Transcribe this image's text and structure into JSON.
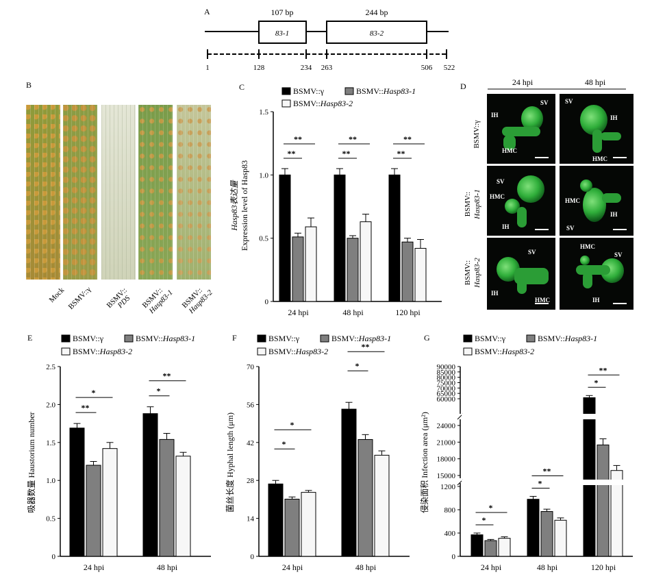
{
  "panel_labels": {
    "A": "A",
    "B": "B",
    "C": "C",
    "D": "D",
    "E": "E",
    "F": "F",
    "G": "G"
  },
  "gene_map": {
    "fragments": [
      {
        "name": "83-1",
        "size": "107 bp"
      },
      {
        "name": "83-2",
        "size": "244 bp"
      }
    ],
    "positions": [
      "1",
      "128",
      "234",
      "263",
      "506",
      "522"
    ]
  },
  "leaf_labels": [
    {
      "line1": "Mock",
      "line2": ""
    },
    {
      "line1": "BSMV::γ",
      "line2": ""
    },
    {
      "line1": "BSMV::",
      "line2": "PDS"
    },
    {
      "line1": "BSMV::",
      "line2": "Hasp83-1"
    },
    {
      "line1": "BSMV::",
      "line2": "Hasp83-2"
    }
  ],
  "micro": {
    "cols": [
      "24 hpi",
      "48 hpi"
    ],
    "rows": [
      {
        "line1": "BSMV::γ",
        "line2": ""
      },
      {
        "line1": "BSMV::",
        "line2": "Hasp83-1"
      },
      {
        "line1": "BSMV::",
        "line2": "Hasp83-2"
      }
    ],
    "labels": [
      "SV",
      "IH",
      "HMC"
    ]
  },
  "legend": {
    "s1": "BSMV::γ",
    "s2_prefix": "BSMV::",
    "s2_italic": "Hasp83-1",
    "s3_prefix": "BSMV::",
    "s3_italic": "Hasp83-2"
  },
  "colors": {
    "s1": "#000000",
    "s2": "#7f7f7f",
    "s3": "#f7f7f7"
  },
  "chart_data": [
    {
      "id": "C",
      "type": "bar",
      "categories": [
        "24 hpi",
        "48 hpi",
        "120 hpi"
      ],
      "ylim": [
        0,
        1.5
      ],
      "yticks": [
        "0",
        "0.5",
        "1.0",
        "1.5"
      ],
      "ylabel_cn": "Hasp83表达量",
      "ylabel_en": "Expression level of Hasp83",
      "series": [
        {
          "name": "BSMV::γ",
          "values": [
            1.0,
            1.0,
            1.0
          ],
          "errors": [
            0.05,
            0.05,
            0.05
          ]
        },
        {
          "name": "BSMV::Hasp83-1",
          "values": [
            0.51,
            0.5,
            0.47
          ],
          "errors": [
            0.03,
            0.02,
            0.03
          ]
        },
        {
          "name": "BSMV::Hasp83-2",
          "values": [
            0.59,
            0.63,
            0.42
          ],
          "errors": [
            0.07,
            0.06,
            0.07
          ]
        }
      ],
      "significance": [
        "**",
        "**",
        "**",
        "**",
        "**",
        "**"
      ]
    },
    {
      "id": "E",
      "type": "bar",
      "categories": [
        "24 hpi",
        "48 hpi"
      ],
      "ylim": [
        0,
        2.5
      ],
      "yticks": [
        "0",
        "0.5",
        "1.0",
        "1.5",
        "2.0",
        "2.5"
      ],
      "ylabel": "吸器数量 Haustorium number",
      "series": [
        {
          "name": "BSMV::γ",
          "values": [
            1.69,
            1.88
          ],
          "errors": [
            0.06,
            0.09
          ]
        },
        {
          "name": "BSMV::Hasp83-1",
          "values": [
            1.2,
            1.54
          ],
          "errors": [
            0.05,
            0.08
          ]
        },
        {
          "name": "BSMV::Hasp83-2",
          "values": [
            1.42,
            1.32
          ],
          "errors": [
            0.08,
            0.05
          ]
        }
      ],
      "significance": [
        "**",
        "*",
        "*",
        "**"
      ]
    },
    {
      "id": "F",
      "type": "bar",
      "categories": [
        "24 hpi",
        "48 hpi"
      ],
      "ylim": [
        0,
        70
      ],
      "yticks": [
        "0",
        "14",
        "28",
        "42",
        "56",
        "70"
      ],
      "ylabel": "菌丝长度 Hyphal length (μm)",
      "series": [
        {
          "name": "BSMV::γ",
          "values": [
            26.7,
            54.3
          ],
          "errors": [
            1.3,
            2.5
          ]
        },
        {
          "name": "BSMV::Hasp83-1",
          "values": [
            21.1,
            43.1
          ],
          "errors": [
            0.8,
            1.8
          ]
        },
        {
          "name": "BSMV::Hasp83-2",
          "values": [
            23.6,
            37.3
          ],
          "errors": [
            0.7,
            1.6
          ]
        }
      ],
      "significance": [
        "*",
        "*",
        "*",
        "**"
      ]
    },
    {
      "id": "G",
      "type": "bar",
      "axis_break": true,
      "categories": [
        "24 hpi",
        "48 hpi",
        "120 hpi"
      ],
      "yticks": [
        "0",
        "400",
        "800",
        "1200",
        "15000",
        "18000",
        "21000",
        "24000",
        "60000",
        "65000",
        "70000",
        "75000",
        "80000",
        "85000",
        "90000"
      ],
      "ylabel": "侵染面积 Infection area (μm²)",
      "series": [
        {
          "name": "BSMV::γ",
          "values": [
            370,
            980,
            61000
          ],
          "errors": [
            30,
            50,
            2000
          ]
        },
        {
          "name": "BSMV::Hasp83-1",
          "values": [
            270,
            770,
            20500
          ],
          "errors": [
            20,
            40,
            1100
          ]
        },
        {
          "name": "BSMV::Hasp83-2",
          "values": [
            310,
            620,
            15900
          ],
          "errors": [
            25,
            40,
            900
          ]
        }
      ],
      "significance": [
        "*",
        "*",
        "*",
        "**",
        "*",
        "**"
      ]
    }
  ]
}
